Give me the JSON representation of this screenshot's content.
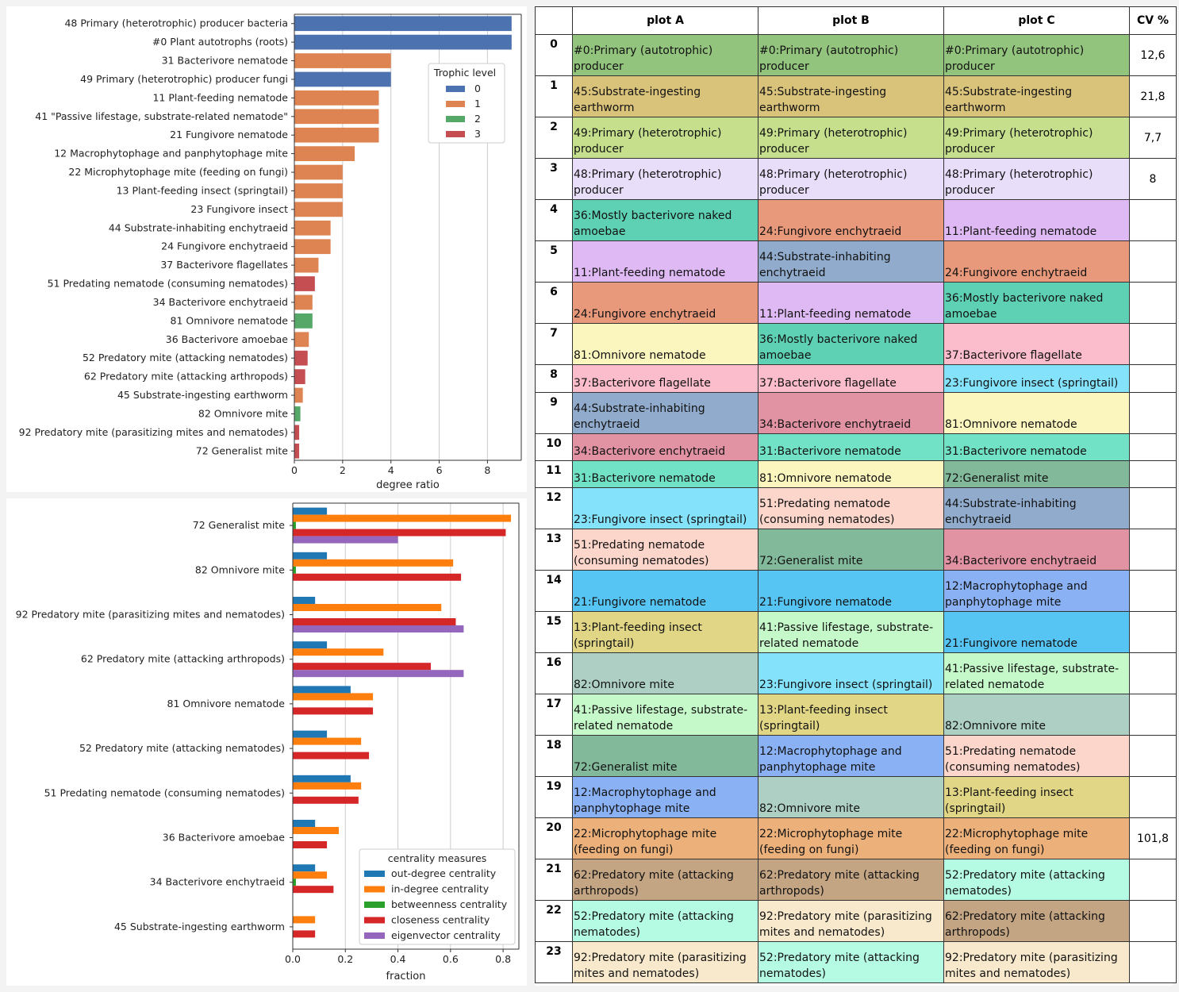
{
  "chart_data": [
    {
      "type": "bar",
      "orientation": "horizontal",
      "categories": [
        "48 Primary (heterotrophic) producer bacteria",
        "#0 Plant autotrophs (roots)",
        "31 Bacterivore nematode",
        "49 Primary (heterotrophic) producer fungi",
        "11 Plant-feeding nematode",
        "41 \"Passive lifestage, substrate-related nematode\"",
        "21 Fungivore nematode",
        "12 Macrophytophage and panphytophage mite",
        "22 Microphytophage mite (feeding on fungi)",
        "13 Plant-feeding insect (springtail)",
        "23 Fungivore insect",
        "44 Substrate-inhabiting enchytraeid",
        "24 Fungivore enchytraeid",
        "37 Bacterivore flagellates",
        "51 Predating nematode (consuming nematodes)",
        "34 Bacterivore enchytraeid",
        "81 Omnivore nematode",
        "36 Bacterivore amoebae",
        "52 Predatory mite (attacking nematodes)",
        "62 Predatory mite (attacking arthropods)",
        "45 Substrate-ingesting earthworm",
        "82 Omnivore mite",
        "92 Predatory mite (parasitizing mites and nematodes)",
        "72 Generalist mite"
      ],
      "values": [
        9.0,
        9.0,
        4.0,
        4.0,
        3.5,
        3.5,
        3.5,
        2.5,
        2.0,
        2.0,
        2.0,
        1.5,
        1.5,
        1.0,
        0.85,
        0.75,
        0.75,
        0.6,
        0.55,
        0.45,
        0.35,
        0.25,
        0.2,
        0.2
      ],
      "trophic_level": [
        0,
        0,
        1,
        0,
        1,
        1,
        1,
        1,
        1,
        1,
        1,
        1,
        1,
        1,
        3,
        1,
        2,
        1,
        3,
        3,
        1,
        2,
        3,
        3
      ],
      "xlabel": "degree ratio",
      "xticks": [
        "0",
        "2",
        "4",
        "6",
        "8"
      ],
      "xlim": [
        0,
        9.4
      ],
      "grid": "vertical",
      "legend": {
        "title": "Trophic level",
        "placement": "upper-right",
        "items": [
          {
            "name": "0",
            "color": "#4c72b0"
          },
          {
            "name": "1",
            "color": "#dd8452"
          },
          {
            "name": "2",
            "color": "#55a868"
          },
          {
            "name": "3",
            "color": "#c44e52"
          }
        ]
      }
    },
    {
      "type": "bar",
      "orientation": "horizontal",
      "categories": [
        "72 Generalist mite",
        "82 Omnivore mite",
        "92 Predatory mite (parasitizing mites and nematodes)",
        "62 Predatory mite (attacking arthropods)",
        "81 Omnivore nematode",
        "52 Predatory mite (attacking nematodes)",
        "51 Predating nematode (consuming nematodes)",
        "36 Bacterivore amoebae",
        "34 Bacterivore enchytraeid",
        "45 Substrate-ingesting earthworm"
      ],
      "series": [
        {
          "name": "out-degree centrality",
          "color": "#1f77b4",
          "values": [
            0.13,
            0.13,
            0.085,
            0.13,
            0.22,
            0.13,
            0.22,
            0.085,
            0.085,
            0.0
          ]
        },
        {
          "name": "in-degree centrality",
          "color": "#ff7f0e",
          "values": [
            0.83,
            0.61,
            0.565,
            0.345,
            0.305,
            0.26,
            0.26,
            0.175,
            0.13,
            0.085
          ]
        },
        {
          "name": "betweenness centrality",
          "color": "#2ca02c",
          "values": [
            0.012,
            0.012,
            0.0,
            0.0,
            0.0,
            0.0,
            0.0,
            0.0,
            0.012,
            0.0
          ]
        },
        {
          "name": "closeness centrality",
          "color": "#d62728",
          "values": [
            0.81,
            0.64,
            0.62,
            0.525,
            0.305,
            0.29,
            0.25,
            0.13,
            0.155,
            0.085
          ]
        },
        {
          "name": "eigenvector centrality",
          "color": "#9467bd",
          "values": [
            0.4,
            0.0,
            0.65,
            0.65,
            0.0,
            0.0,
            0.0,
            0.0,
            0.0,
            0.0
          ]
        }
      ],
      "xlabel": "fraction",
      "xticks": [
        "0.0",
        "0.2",
        "0.4",
        "0.6",
        "0.8"
      ],
      "xlim": [
        0,
        0.86
      ],
      "grid": "vertical",
      "legend": {
        "title": "centrality measures",
        "placement": "lower-right"
      }
    },
    {
      "type": "table",
      "headers": [
        "",
        "plot A",
        "plot B",
        "plot C",
        "CV %"
      ],
      "rows": [
        {
          "idx": "0",
          "a": "#0:Primary (autotrophic) producer",
          "b": "#0:Primary (autotrophic) producer",
          "c": "#0:Primary (autotrophic) producer",
          "cv": "12,6"
        },
        {
          "idx": "1",
          "a": "45:Substrate-ingesting earthworm",
          "b": "45:Substrate-ingesting earthworm",
          "c": "45:Substrate-ingesting earthworm",
          "cv": "21,8"
        },
        {
          "idx": "2",
          "a": "49:Primary (heterotrophic) producer",
          "b": "49:Primary (heterotrophic) producer",
          "c": "49:Primary (heterotrophic) producer",
          "cv": "7,7"
        },
        {
          "idx": "3",
          "a": "48:Primary (heterotrophic) producer",
          "b": "48:Primary (heterotrophic) producer",
          "c": "48:Primary (heterotrophic) producer",
          "cv": "8"
        },
        {
          "idx": "4",
          "a": "36:Mostly bacterivore naked amoebae",
          "b": "24:Fungivore enchytraeid",
          "c": "11:Plant-feeding nematode",
          "cv": ""
        },
        {
          "idx": "5",
          "a": "11:Plant-feeding nematode",
          "b": "44:Substrate-inhabiting enchytraeid",
          "c": "24:Fungivore enchytraeid",
          "cv": ""
        },
        {
          "idx": "6",
          "a": "24:Fungivore enchytraeid",
          "b": "11:Plant-feeding nematode",
          "c": "36:Mostly bacterivore naked amoebae",
          "cv": ""
        },
        {
          "idx": "7",
          "a": "81:Omnivore nematode",
          "b": "36:Mostly bacterivore naked amoebae",
          "c": "37:Bacterivore flagellate",
          "cv": ""
        },
        {
          "idx": "8",
          "a": "37:Bacterivore flagellate",
          "b": "37:Bacterivore flagellate",
          "c": "23:Fungivore insect (springtail)",
          "cv": ""
        },
        {
          "idx": "9",
          "a": "44:Substrate-inhabiting enchytraeid",
          "b": "34:Bacterivore enchytraeid",
          "c": "81:Omnivore nematode",
          "cv": ""
        },
        {
          "idx": "10",
          "a": "34:Bacterivore enchytraeid",
          "b": "31:Bacterivore nematode",
          "c": "31:Bacterivore nematode",
          "cv": ""
        },
        {
          "idx": "11",
          "a": "31:Bacterivore nematode",
          "b": "81:Omnivore nematode",
          "c": "72:Generalist mite",
          "cv": ""
        },
        {
          "idx": "12",
          "a": "23:Fungivore insect (springtail)",
          "b": "51:Predating nematode (consuming nematodes)",
          "c": "44:Substrate-inhabiting enchytraeid",
          "cv": ""
        },
        {
          "idx": "13",
          "a": "51:Predating nematode (consuming nematodes)",
          "b": "72:Generalist mite",
          "c": "34:Bacterivore enchytraeid",
          "cv": ""
        },
        {
          "idx": "14",
          "a": "21:Fungivore nematode",
          "b": "21:Fungivore nematode",
          "c": "12:Macrophytophage and panphytophage mite",
          "cv": ""
        },
        {
          "idx": "15",
          "a": "13:Plant-feeding insect (springtail)",
          "b": "41:Passive lifestage, substrate-related nematode",
          "c": "21:Fungivore nematode",
          "cv": ""
        },
        {
          "idx": "16",
          "a": "82:Omnivore mite",
          "b": "23:Fungivore insect (springtail)",
          "c": "41:Passive lifestage, substrate-related nematode",
          "cv": ""
        },
        {
          "idx": "17",
          "a": "41:Passive lifestage, substrate-related nematode",
          "b": "13:Plant-feeding insect (springtail)",
          "c": "82:Omnivore mite",
          "cv": ""
        },
        {
          "idx": "18",
          "a": "72:Generalist mite",
          "b": "12:Macrophytophage and panphytophage mite",
          "c": "51:Predating nematode (consuming nematodes)",
          "cv": ""
        },
        {
          "idx": "19",
          "a": "12:Macrophytophage and panphytophage mite",
          "b": "82:Omnivore mite",
          "c": "13:Plant-feeding insect (springtail)",
          "cv": ""
        },
        {
          "idx": "20",
          "a": "22:Microphytophage mite (feeding on fungi)",
          "b": "22:Microphytophage mite (feeding on fungi)",
          "c": "22:Microphytophage mite (feeding on fungi)",
          "cv": "101,8"
        },
        {
          "idx": "21",
          "a": "62:Predatory mite (attacking arthropods)",
          "b": "62:Predatory mite (attacking arthropods)",
          "c": "52:Predatory mite (attacking nematodes)",
          "cv": ""
        },
        {
          "idx": "22",
          "a": "52:Predatory mite (attacking nematodes)",
          "b": "92:Predatory mite (parasitizing mites and nematodes)",
          "c": "62:Predatory mite (attacking arthropods)",
          "cv": ""
        },
        {
          "idx": "23",
          "a": "92:Predatory mite (parasitizing mites and nematodes)",
          "b": "52:Predatory mite (attacking nematodes)",
          "c": "92:Predatory mite (parasitizing mites and nematodes)",
          "cv": ""
        }
      ],
      "group_colors": {
        "0": "#93c47d",
        "45": "#d9c27a",
        "49": "#c5df8c",
        "48": "#e8defa",
        "36": "#5ed1b5",
        "24": "#e8997b",
        "11": "#dfb9f4",
        "44": "#91abcc",
        "81": "#fbf5be",
        "37": "#fbbccb",
        "23": "#84e3fb",
        "34": "#e193a4",
        "31": "#72e2c6",
        "72": "#82b99b",
        "51": "#fcd5cb",
        "21": "#57c5f4",
        "12": "#8ab1f4",
        "13": "#e0d685",
        "41": "#c5f9c9",
        "82": "#aed0c4",
        "22": "#ecb17b",
        "62": "#c3a584",
        "52": "#b5fbe3",
        "92": "#f8e9cd"
      }
    }
  ]
}
